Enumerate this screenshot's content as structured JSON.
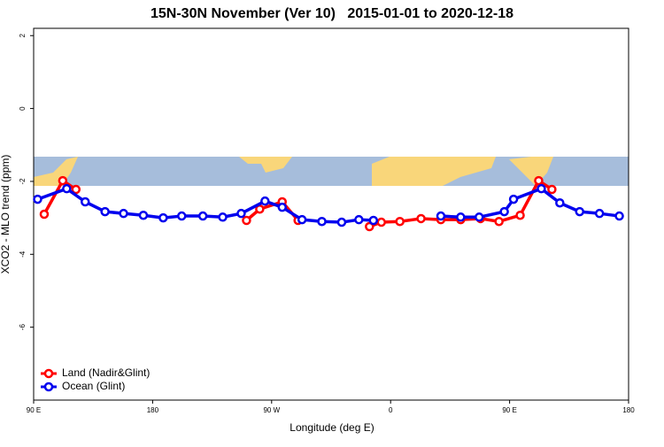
{
  "chart_data": {
    "type": "line",
    "title": "15N-30N November (Ver 10)   2015-01-01 to 2020-12-18",
    "x_label": "Longitude (deg E)",
    "y_label": "XCO2 - MLO trend (ppm)",
    "xlim": [
      90,
      540
    ],
    "ylim": [
      -8,
      2.2
    ],
    "xticks": [
      {
        "value": 90,
        "label": "90 E"
      },
      180,
      {
        "value": 270,
        "label": "90 W"
      },
      {
        "value": 360,
        "label": "0"
      },
      {
        "value": 450,
        "label": "90 E"
      },
      {
        "value": 540,
        "label": "180"
      }
    ],
    "yticks": [
      2,
      0,
      -2,
      -4,
      -6
    ],
    "legend": "bottom-left",
    "series": [
      {
        "name": "Land (Nadir&Glint)",
        "color": "#ff0000",
        "x": [
          98,
          112,
          122,
          180,
          251,
          261,
          278,
          290,
          350,
          344,
          353,
          367,
          383,
          398,
          413,
          428,
          442,
          458,
          472,
          482
        ],
        "values": [
          -2.9,
          -1.98,
          -2.22,
          null,
          -3.07,
          -2.76,
          -2.56,
          -3.07,
          null,
          -3.24,
          -3.12,
          -3.1,
          -3.02,
          -3.05,
          -3.05,
          -3.02,
          -3.1,
          -2.93,
          -1.98,
          -2.22
        ]
      },
      {
        "name": "Ocean (Glint)",
        "color": "#0000ee",
        "x": [
          93,
          115,
          129,
          144,
          158,
          173,
          188,
          202,
          218,
          233,
          247,
          265,
          278,
          293,
          308,
          323,
          336,
          347,
          370,
          398,
          413,
          427,
          446,
          453,
          474,
          488,
          503,
          518,
          533
        ],
        "values": [
          -2.49,
          -2.2,
          -2.56,
          -2.83,
          -2.88,
          -2.93,
          -3.0,
          -2.95,
          -2.95,
          -2.98,
          -2.88,
          -2.54,
          -2.71,
          -3.05,
          -3.1,
          -3.12,
          -3.05,
          -3.07,
          null,
          -2.95,
          -2.98,
          -2.98,
          -2.83,
          -2.49,
          -2.2,
          -2.59,
          -2.83,
          -2.88,
          -2.95
        ]
      }
    ]
  }
}
